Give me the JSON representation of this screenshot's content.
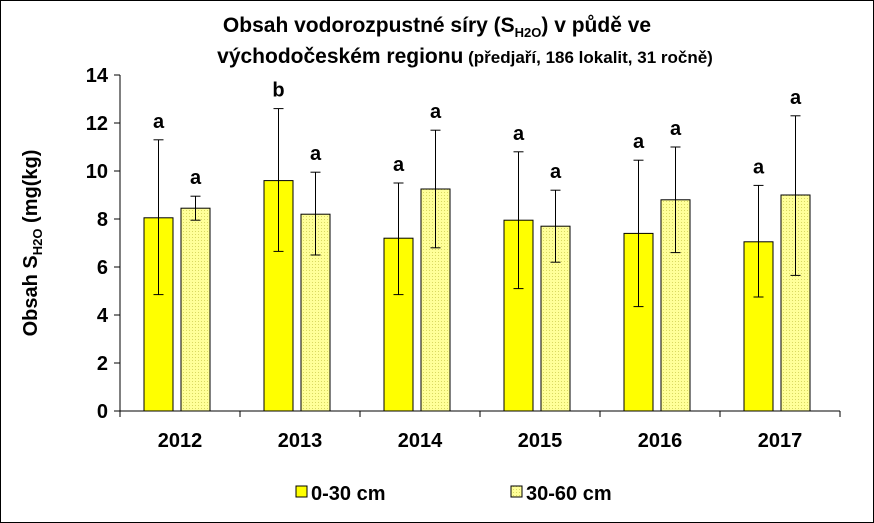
{
  "chart_data": {
    "type": "bar",
    "title_line1_main": "Obsah vodorozpustné síry (S",
    "title_line1_sub": "H2O",
    "title_line1_end": ") v půdě ve",
    "title_line2_main": "východočeském regionu",
    "title_line2_note": "(předjaří, 186 lokalit, 31 ročně)",
    "ylabel_main": "Obsah S",
    "ylabel_sub": "H2O",
    "ylabel_end": " (mg(kg)",
    "xlabel": "",
    "categories": [
      "2012",
      "2013",
      "2014",
      "2015",
      "2016",
      "2017"
    ],
    "ylim": [
      0,
      14
    ],
    "yticks": [
      0,
      2,
      4,
      6,
      8,
      10,
      12,
      14
    ],
    "grid": false,
    "legend_position": "bottom",
    "series": [
      {
        "name": "0-30 cm",
        "color": "#ffff00",
        "pattern": "solid",
        "values": [
          8.05,
          9.6,
          7.2,
          7.95,
          7.4,
          7.05
        ],
        "error_low": [
          4.85,
          6.65,
          4.85,
          5.1,
          4.35,
          4.75
        ],
        "error_high": [
          11.3,
          12.6,
          9.5,
          10.8,
          10.45,
          9.4
        ],
        "labels": [
          "a",
          "b",
          "a",
          "a",
          "a",
          "a"
        ]
      },
      {
        "name": "30-60 cm",
        "color": "#ffff99",
        "pattern": "dotted",
        "values": [
          8.45,
          8.2,
          9.25,
          7.7,
          8.8,
          9.0
        ],
        "error_low": [
          7.95,
          6.5,
          6.8,
          6.2,
          6.6,
          5.65
        ],
        "error_high": [
          8.95,
          9.95,
          11.7,
          9.2,
          11.0,
          12.3
        ],
        "labels": [
          "a",
          "a",
          "a",
          "a",
          "a",
          "a"
        ]
      }
    ]
  }
}
